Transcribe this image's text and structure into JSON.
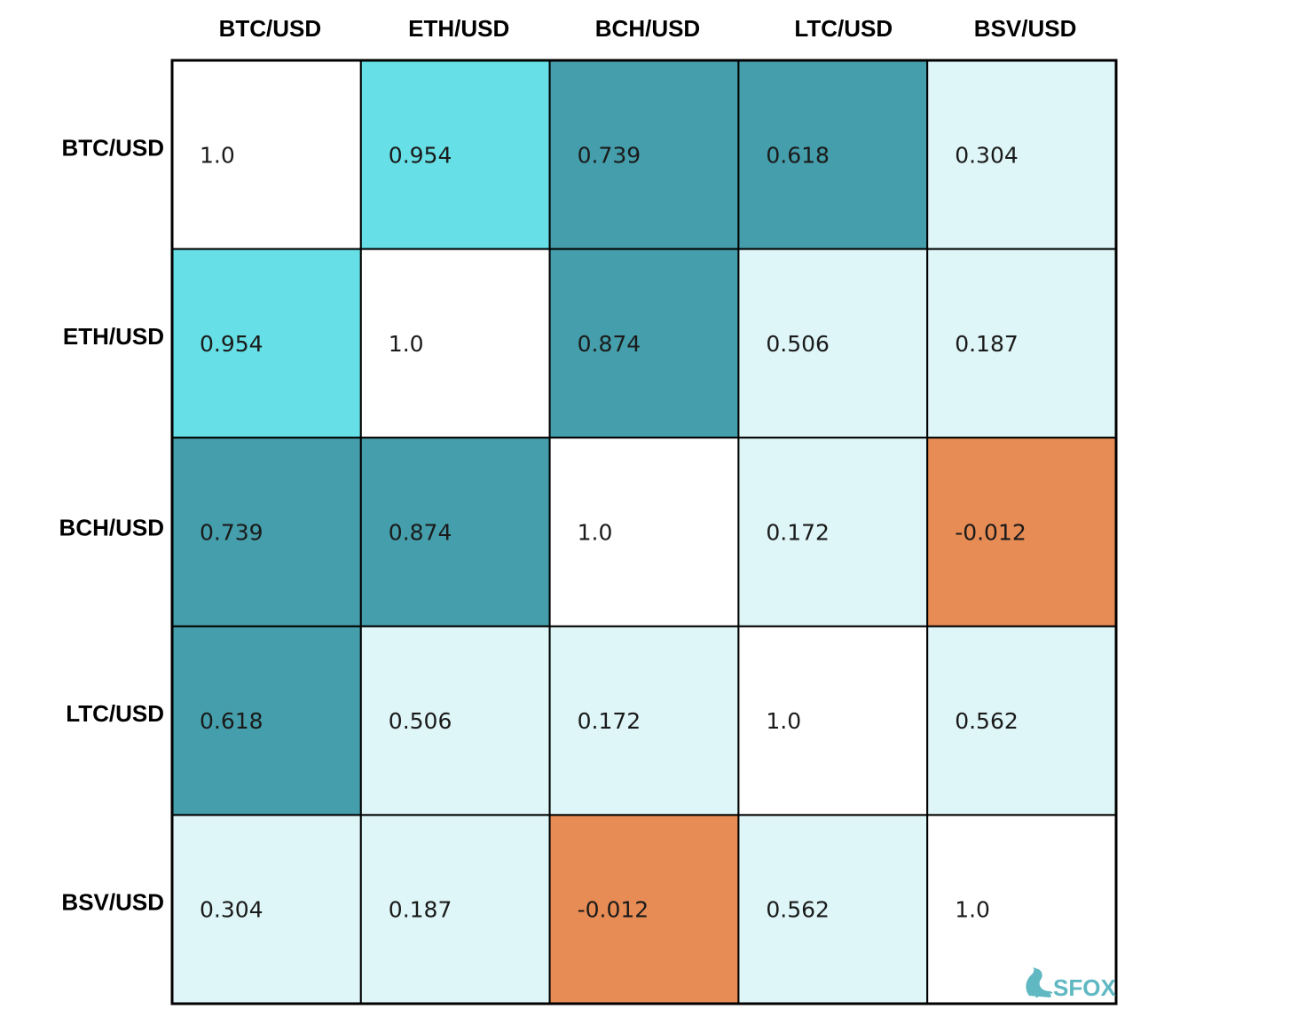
{
  "chart_data": {
    "type": "heatmap",
    "x_labels": [
      "BTC/USD",
      "ETH/USD",
      "BCH/USD",
      "LTC/USD",
      "BSV/USD"
    ],
    "y_labels": [
      "BTC/USD",
      "ETH/USD",
      "BCH/USD",
      "LTC/USD",
      "BSV/USD"
    ],
    "values": [
      [
        1.0,
        0.954,
        0.739,
        0.618,
        0.304
      ],
      [
        0.954,
        1.0,
        0.874,
        0.506,
        0.187
      ],
      [
        0.739,
        0.874,
        1.0,
        0.172,
        -0.012
      ],
      [
        0.618,
        0.506,
        0.172,
        1.0,
        0.562
      ],
      [
        0.304,
        0.187,
        -0.012,
        0.562,
        1.0
      ]
    ],
    "value_labels": [
      [
        "1.0",
        "0.954",
        "0.739",
        "0.618",
        "0.304"
      ],
      [
        "0.954",
        "1.0",
        "0.874",
        "0.506",
        "0.187"
      ],
      [
        "0.739",
        "0.874",
        "1.0",
        "0.172",
        "-0.012"
      ],
      [
        "0.618",
        "0.506",
        "0.172",
        "1.0",
        "0.562"
      ],
      [
        "0.304",
        "0.187",
        "-0.012",
        "0.562",
        "1.0"
      ]
    ],
    "colors": {
      "diagonal": "#ffffff",
      "very_high": "#66e0e6",
      "high": "#459eab",
      "low": "#dff6f8",
      "negative": "#e88c55"
    }
  },
  "brand": {
    "name": "SFOX",
    "color": "#5fb8c2",
    "icon": "fox-icon"
  }
}
